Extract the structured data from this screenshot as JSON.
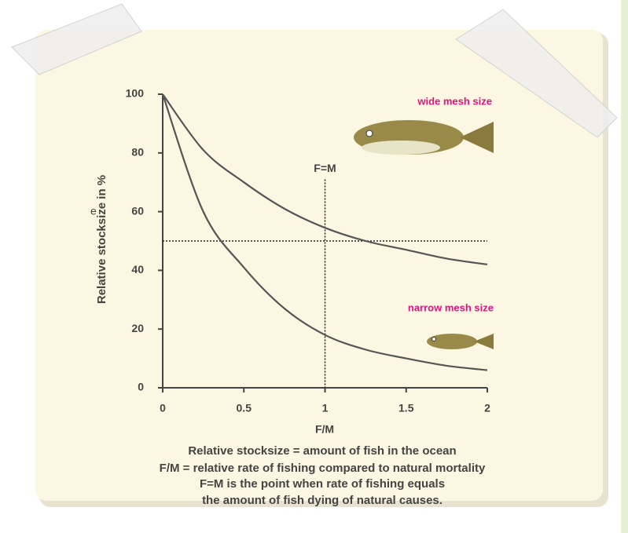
{
  "chart_data": {
    "type": "line",
    "x_label": "F/M",
    "y_label": "Relative stocksize in %",
    "x": [
      0,
      0.25,
      0.5,
      0.75,
      1,
      1.25,
      1.5,
      1.75,
      2
    ],
    "series": [
      {
        "name": "wide mesh size",
        "color": "#555555",
        "values": [
          100,
          81,
          70,
          61,
          54.5,
          50,
          47,
          44,
          42
        ]
      },
      {
        "name": "narrow mesh size",
        "color": "#555555",
        "values": [
          100,
          60,
          41,
          27,
          18,
          13,
          10,
          7.5,
          6
        ]
      }
    ],
    "label_color": "#e2127f",
    "xlim": [
      0,
      2
    ],
    "ylim": [
      0,
      100
    ],
    "xticks": [
      0,
      0.5,
      1,
      1.5,
      2
    ],
    "yticks": [
      0,
      20,
      40,
      60,
      80,
      100
    ],
    "reference_line_y": 50,
    "reference_line_x": 1,
    "reference_line_x_top": 71,
    "reference_label": "F=M",
    "captions": [
      "Relative stocksize = amount of fish in the ocean",
      "F/M = relative rate of fishing compared to natural mortality",
      "F=M is the point when rate of fishing equals",
      "the amount of fish dying of natural causes."
    ],
    "left_fragment": "e"
  }
}
